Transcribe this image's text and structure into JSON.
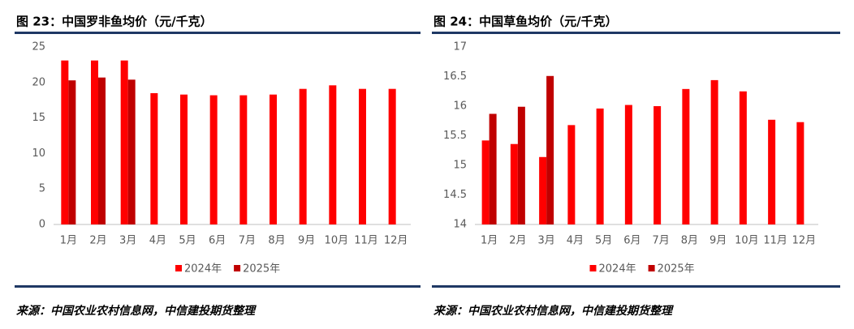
{
  "chart_data": [
    {
      "type": "bar",
      "title": "图 23：中国罗非鱼均价（元/千克）",
      "categories": [
        "1月",
        "2月",
        "3月",
        "4月",
        "5月",
        "6月",
        "7月",
        "8月",
        "9月",
        "10月",
        "11月",
        "12月"
      ],
      "series": [
        {
          "name": "2024年",
          "color": "#ff0000",
          "values": [
            23.1,
            23.1,
            23.1,
            18.5,
            18.3,
            18.2,
            18.2,
            18.3,
            19.1,
            19.6,
            19.1,
            19.1
          ]
        },
        {
          "name": "2025年",
          "color": "#c00000",
          "values": [
            20.3,
            20.7,
            20.4,
            null,
            null,
            null,
            null,
            null,
            null,
            null,
            null,
            null
          ]
        }
      ],
      "ylim": [
        0,
        25
      ],
      "yticks": [
        0,
        5,
        10,
        15,
        20,
        25
      ],
      "grid": false,
      "legend": "bottom",
      "source": "来源：中国农业农村信息网，中信建投期货整理"
    },
    {
      "type": "bar",
      "title": "图 24：中国草鱼均价（元/千克）",
      "categories": [
        "1月",
        "2月",
        "3月",
        "4月",
        "5月",
        "6月",
        "7月",
        "8月",
        "9月",
        "10月",
        "11月",
        "12月"
      ],
      "series": [
        {
          "name": "2024年",
          "color": "#ff0000",
          "values": [
            15.42,
            15.36,
            15.14,
            15.68,
            15.96,
            16.02,
            16.0,
            16.29,
            16.44,
            16.25,
            15.77,
            15.73
          ]
        },
        {
          "name": "2025年",
          "color": "#c00000",
          "values": [
            15.87,
            15.99,
            16.51,
            null,
            null,
            null,
            null,
            null,
            null,
            null,
            null,
            null
          ]
        }
      ],
      "ylim": [
        14,
        17
      ],
      "yticks": [
        14,
        14.5,
        15,
        15.5,
        16,
        16.5,
        17
      ],
      "grid": false,
      "legend": "bottom",
      "source": "来源：中国农业农村信息网，中信建投期货整理"
    }
  ]
}
